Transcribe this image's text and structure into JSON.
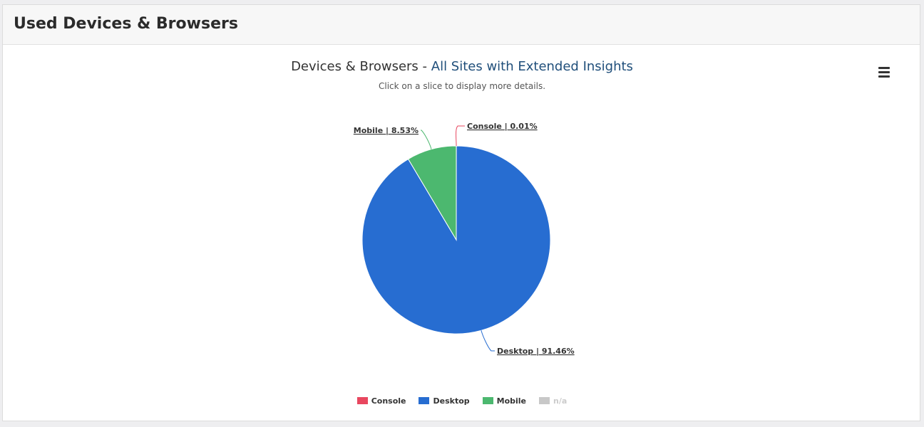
{
  "panel": {
    "title": "Used Devices & Browsers"
  },
  "chart_data": {
    "type": "pie",
    "title": "Devices & Browsers - ",
    "title_accent": "All Sites with Extended Insights",
    "subtitle": "Click on a slice to display more details.",
    "slices": [
      {
        "name": "Console",
        "value": 0.01,
        "label": "Console | 0.01%",
        "color": "#e8475f"
      },
      {
        "name": "Desktop",
        "value": 91.46,
        "label": "Desktop | 91.46%",
        "color": "#276dd1"
      },
      {
        "name": "Mobile",
        "value": 8.53,
        "label": "Mobile | 8.53%",
        "color": "#4cb86f"
      }
    ],
    "legend": [
      {
        "name": "Console",
        "color": "#e8475f",
        "active": true
      },
      {
        "name": "Desktop",
        "color": "#276dd1",
        "active": true
      },
      {
        "name": "Mobile",
        "color": "#4cb86f",
        "active": true
      },
      {
        "name": "n/a",
        "color": "#c8c8c8",
        "active": false
      }
    ],
    "legend_position": "bottom-center"
  },
  "menu": {
    "icon": "hamburger-menu-icon"
  }
}
